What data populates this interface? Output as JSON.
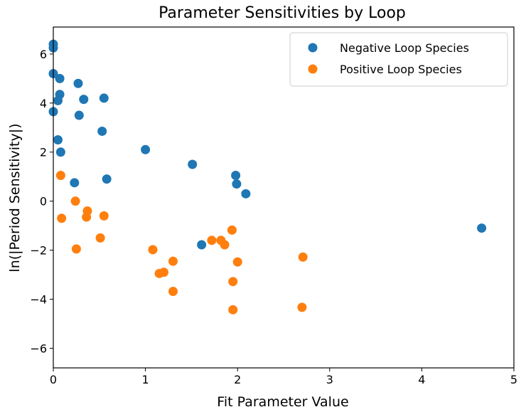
{
  "chart_data": {
    "type": "scatter",
    "title": "Parameter Sensitivities by Loop",
    "xlabel": "Fit Parameter Value",
    "ylabel": "ln(|Period Sensitivity|)",
    "xlim": [
      0,
      5
    ],
    "ylim": [
      -6.8,
      7.1
    ],
    "xticks": [
      0,
      1,
      2,
      3,
      4,
      5
    ],
    "yticks": [
      -6,
      -4,
      -2,
      0,
      2,
      4,
      6
    ],
    "xtick_labels": [
      "0",
      "1",
      "2",
      "3",
      "4",
      "5"
    ],
    "ytick_labels": [
      "−6",
      "−4",
      "−2",
      "0",
      "2",
      "4",
      "6"
    ],
    "grid": false,
    "legend_position": "top-right",
    "series": [
      {
        "name": "Negative Loop Species",
        "color": "#1f77b4",
        "points": [
          [
            0.0,
            6.4
          ],
          [
            0.0,
            6.25
          ],
          [
            0.0,
            5.2
          ],
          [
            0.07,
            5.0
          ],
          [
            0.0,
            3.65
          ],
          [
            0.07,
            4.35
          ],
          [
            0.05,
            4.1
          ],
          [
            0.27,
            4.8
          ],
          [
            0.33,
            4.15
          ],
          [
            0.55,
            4.2
          ],
          [
            0.28,
            3.5
          ],
          [
            0.53,
            2.85
          ],
          [
            0.05,
            2.5
          ],
          [
            0.08,
            2.0
          ],
          [
            1.0,
            2.1
          ],
          [
            0.23,
            0.75
          ],
          [
            0.58,
            0.9
          ],
          [
            1.51,
            1.5
          ],
          [
            1.98,
            1.05
          ],
          [
            1.99,
            0.7
          ],
          [
            2.09,
            0.3
          ],
          [
            1.61,
            -1.78
          ],
          [
            4.65,
            -1.1
          ]
        ]
      },
      {
        "name": "Positive Loop Species",
        "color": "#ff7f0e",
        "points": [
          [
            0.08,
            1.05
          ],
          [
            0.09,
            -0.7
          ],
          [
            0.24,
            0.0
          ],
          [
            0.37,
            -0.4
          ],
          [
            0.36,
            -0.65
          ],
          [
            0.55,
            -0.6
          ],
          [
            0.51,
            -1.5
          ],
          [
            0.25,
            -1.95
          ],
          [
            1.08,
            -1.98
          ],
          [
            1.15,
            -2.95
          ],
          [
            1.2,
            -2.9
          ],
          [
            1.3,
            -2.45
          ],
          [
            1.3,
            -3.68
          ],
          [
            1.72,
            -1.6
          ],
          [
            1.82,
            -1.6
          ],
          [
            1.86,
            -1.78
          ],
          [
            1.94,
            -1.18
          ],
          [
            2.0,
            -2.48
          ],
          [
            1.95,
            -3.28
          ],
          [
            1.95,
            -4.43
          ],
          [
            2.71,
            -2.28
          ],
          [
            2.7,
            -4.33
          ]
        ]
      }
    ]
  }
}
